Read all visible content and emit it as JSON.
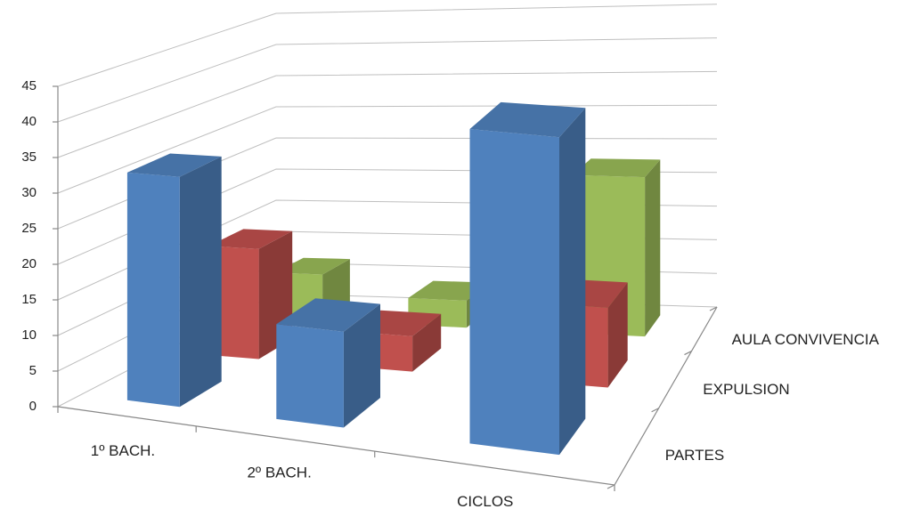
{
  "chart_data": {
    "type": "bar3d",
    "categories": [
      "1º BACH.",
      "2º BACH.",
      "CICLOS"
    ],
    "series": [
      {
        "name": "PARTES",
        "color": "#4f81bd",
        "values": [
          32,
          13,
          42
        ]
      },
      {
        "name": "EXPULSION",
        "color": "#c0504d",
        "values": [
          16,
          5,
          11
        ]
      },
      {
        "name": "AULA CONVIVENCIA",
        "color": "#9bbb59",
        "values": [
          7,
          4,
          23
        ]
      }
    ],
    "ylim": [
      0,
      45
    ],
    "yticks": [
      0,
      5,
      10,
      15,
      20,
      25,
      30,
      35,
      40,
      45
    ],
    "grid": true
  }
}
